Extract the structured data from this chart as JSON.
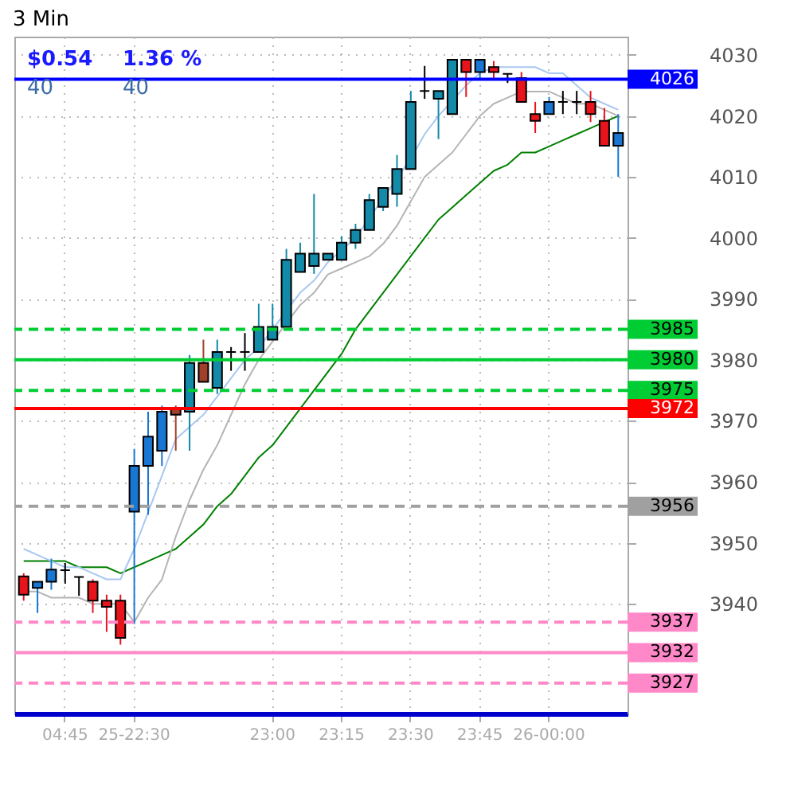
{
  "chart_data": {
    "type": "candlestick",
    "title": "3 Min",
    "categories": [
      null,
      null,
      null,
      "04:45",
      null,
      null,
      null,
      null,
      "25-22:30",
      null,
      null,
      null,
      null,
      null,
      null,
      null,
      null,
      null,
      "23:00",
      null,
      null,
      null,
      null,
      "23:15",
      null,
      null,
      null,
      null,
      "23:30",
      null,
      null,
      null,
      null,
      "23:45",
      null,
      null,
      null,
      null,
      "26-00:00",
      null,
      null,
      null,
      null,
      null
    ],
    "ohlc": [
      [
        3944.5,
        3945,
        3940.5,
        3941.5
      ],
      [
        3942.6,
        3943.6,
        3938.5,
        3943.6
      ],
      [
        3943.6,
        3947.4,
        3942.3,
        3945.6
      ],
      [
        3945.5,
        3946.7,
        3943.3,
        3945.5
      ],
      [
        3944.4,
        3944.4,
        3941.3,
        3944.4
      ],
      [
        3943.6,
        3944,
        3938.5,
        3940.5
      ],
      [
        3940.5,
        3941.5,
        3935.4,
        3939.5
      ],
      [
        3940.5,
        3941.5,
        3933.3,
        3934.4
      ],
      [
        3955.1,
        3965.4,
        3936.7,
        3962.6
      ],
      [
        3962.6,
        3971.5,
        3954.6,
        3967.4
      ],
      [
        3965.1,
        3972.5,
        3962.6,
        3971.5
      ],
      [
        3972,
        3972.5,
        3965.1,
        3971
      ],
      [
        3971.5,
        3980.8,
        3965.1,
        3979.5
      ],
      [
        3979.5,
        3983.3,
        3976.4,
        3976.4
      ],
      [
        3975.4,
        3983.3,
        3974.4,
        3981.3
      ],
      [
        3981.3,
        3982.1,
        3978.2,
        3981.3
      ],
      [
        3981.3,
        3984.4,
        3978.2,
        3981.3
      ],
      [
        3981.3,
        3989.2,
        3981.3,
        3985.4
      ],
      [
        3983.3,
        3989.2,
        3983.3,
        3985.4
      ],
      [
        3985.4,
        3998.2,
        3985.4,
        3996.4
      ],
      [
        3994.4,
        3999.2,
        3994.4,
        3997.4
      ],
      [
        3995.4,
        4007.2,
        3994.1,
        3997.4
      ],
      [
        3996.4,
        3997.4,
        3996.4,
        3997.4
      ],
      [
        3996.4,
        4000.3,
        3996.4,
        3999.2
      ],
      [
        3999.2,
        4002.3,
        3998.2,
        4001.3
      ],
      [
        4001.3,
        4007.2,
        4001.3,
        4006.2
      ],
      [
        4005.1,
        4008.2,
        4004.4,
        4008.2
      ],
      [
        4007.2,
        4013.6,
        4005.1,
        4011.3
      ],
      [
        4011.3,
        4024.1,
        4011.3,
        4022.3
      ],
      [
        4024.1,
        4028.2,
        4022.8,
        4024.1
      ],
      [
        4022.8,
        4024.1,
        4016.2,
        4024.1
      ],
      [
        4020.3,
        4029.2,
        4020.3,
        4029.2
      ],
      [
        4029.2,
        4029.2,
        4023.1,
        4027.2
      ],
      [
        4027.2,
        4029.2,
        4026.2,
        4029.2
      ],
      [
        4028,
        4029,
        4026.2,
        4027.2
      ],
      [
        4026.9,
        4026.9,
        4025.4,
        4026.9
      ],
      [
        4026.2,
        4027.2,
        4022.3,
        4022.3
      ],
      [
        4020.3,
        4022.3,
        4017.2,
        4019.2
      ],
      [
        4020.3,
        4023.1,
        4020.3,
        4022.3
      ],
      [
        4022.3,
        4024.1,
        4020.3,
        4022.3
      ],
      [
        4022.3,
        4024.1,
        4020.3,
        4022.3
      ],
      [
        4022.3,
        4024.1,
        4019,
        4020.3
      ],
      [
        4019.2,
        4021.3,
        4015.1,
        4015.1
      ],
      [
        4015.1,
        4020.3,
        4010,
        4017.2
      ]
    ],
    "colors": [
      "#e8141b",
      "#1976d2",
      "#1976d2",
      "#000000",
      "#000000",
      "#e8141b",
      "#e8141b",
      "#e8141b",
      "#1976d2",
      "#1976d2",
      "#1976d2",
      "#a0402a",
      "#138aa8",
      "#a0402a",
      "#138aa8",
      "#000000",
      "#000000",
      "#138aa8",
      "#138aa8",
      "#138aa8",
      "#138aa8",
      "#138aa8",
      "#138aa8",
      "#138aa8",
      "#138aa8",
      "#138aa8",
      "#138aa8",
      "#138aa8",
      "#138aa8",
      "#000000",
      "#138aa8",
      "#138aa8",
      "#e8141b",
      "#1976d2",
      "#e8141b",
      "#000000",
      "#e8141b",
      "#e8141b",
      "#1976d2",
      "#000000",
      "#000000",
      "#e8141b",
      "#e8141b",
      "#1976d2"
    ],
    "series": [
      {
        "type": "line",
        "color": "#008000",
        "values": [
          3947,
          3947,
          3947,
          3947,
          3946,
          3946,
          3946,
          3945,
          3946,
          3947,
          3948,
          3949,
          3951,
          3953,
          3956,
          3958,
          3961,
          3964,
          3966,
          3969,
          3972,
          3975,
          3978,
          3981,
          3985,
          3988,
          3991,
          3994,
          3997,
          4000,
          4003,
          4005,
          4007,
          4009,
          4011,
          4012,
          4014,
          4014,
          4015,
          4016,
          4017,
          4018,
          4019,
          4020
        ]
      },
      {
        "type": "line",
        "color": "#b4b4b4",
        "values": [
          3942,
          3942,
          3941,
          3941,
          3941,
          3940,
          3940,
          3940,
          3937,
          3941,
          3944,
          3951,
          3957,
          3962,
          3966,
          3971,
          3976,
          3980,
          3983,
          3986,
          3989,
          3991,
          3994,
          3995,
          3996,
          3997,
          3999,
          4002,
          4006,
          4010,
          4012,
          4014,
          4017,
          4020,
          4022,
          4023,
          4024,
          4024,
          4024,
          4023,
          4022,
          4022,
          4021,
          4020
        ]
      },
      {
        "type": "line",
        "color": "#a8c8f0",
        "values": [
          3949,
          3948,
          3947,
          3946,
          3946,
          3945,
          3944,
          3944,
          3949,
          3955,
          3961,
          3967,
          3969,
          3971,
          3974,
          3977,
          3980,
          3982,
          3985,
          null,
          3991,
          3993,
          3996,
          3998,
          4000,
          null,
          null,
          null,
          4013,
          4017,
          4020,
          null,
          4025,
          4027,
          4028,
          4028,
          4028,
          4028,
          4027,
          4027,
          4025,
          4023,
          4022,
          4021
        ]
      }
    ],
    "ylim": [
      3922,
      4033
    ],
    "yticks": [
      3940,
      3950,
      3960,
      3970,
      3980,
      3990,
      4000,
      4010,
      4020,
      4030
    ],
    "grid": true,
    "ref_lines": [
      {
        "axis": "y",
        "value": 4026,
        "label": "4026",
        "color": "#0000ff",
        "line_style": "solid"
      },
      {
        "axis": "y",
        "value": 3985,
        "label": "3985",
        "color": "#00cc33",
        "line_style": "dashed"
      },
      {
        "axis": "y",
        "value": 3980,
        "label": "3980",
        "color": "#00cc33",
        "line_style": "solid"
      },
      {
        "axis": "y",
        "value": 3975,
        "label": "3975",
        "color": "#00cc33",
        "line_style": "dashed"
      },
      {
        "axis": "y",
        "value": 3972,
        "label": "3972",
        "color": "#ff0000",
        "line_style": "solid"
      },
      {
        "axis": "y",
        "value": 3956,
        "label": "3956",
        "color": "#a0a0a0",
        "line_style": "dashed"
      },
      {
        "axis": "y",
        "value": 3937,
        "label": "3937",
        "color": "#ff88c8",
        "line_style": "dashed"
      },
      {
        "axis": "y",
        "value": 3932,
        "label": "3932",
        "color": "#ff88c8",
        "line_style": "solid"
      },
      {
        "axis": "y",
        "value": 3927,
        "label": "3927",
        "color": "#ff88c8",
        "line_style": "dashed"
      }
    ],
    "annotations": [
      "$0.54",
      "1.36 %",
      "40",
      "40"
    ]
  }
}
